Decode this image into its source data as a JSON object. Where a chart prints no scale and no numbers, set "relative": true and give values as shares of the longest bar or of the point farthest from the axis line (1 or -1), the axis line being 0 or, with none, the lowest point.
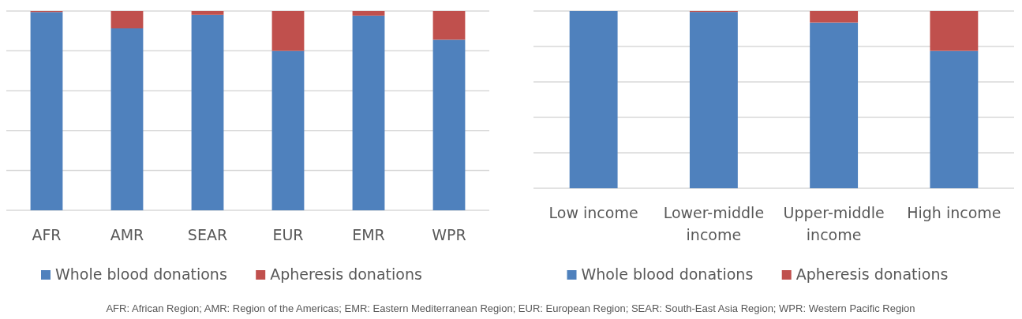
{
  "chart_data": [
    {
      "type": "bar",
      "stacked": true,
      "relative": true,
      "grid": "y",
      "legend": "bottom",
      "categories": [
        "AFR",
        "AMR",
        "SEAR",
        "EUR",
        "EMR",
        "WPR"
      ],
      "series": [
        {
          "name": "Whole blood donations",
          "color": "#4f81bd",
          "values": [
            0.995,
            0.913,
            0.981,
            0.8,
            0.977,
            0.856
          ]
        },
        {
          "name": "Apheresis donations",
          "color": "#c0504d",
          "values": [
            0.005,
            0.087,
            0.019,
            0.2,
            0.023,
            0.144
          ]
        }
      ],
      "annotations": [
        "AFR: African Region; AMR: Region of the Americas; EMR: Eastern Mediterranean Region; EUR: European Region; SEAR: South-East Asia Region; WPR: Western Pacific Region"
      ]
    },
    {
      "type": "bar",
      "stacked": true,
      "relative": true,
      "grid": "y",
      "legend": "bottom",
      "categories": [
        "Low income",
        "Lower-middle income",
        "Upper-middle income",
        "High income"
      ],
      "series": [
        {
          "name": "Whole blood donations",
          "color": "#4f81bd",
          "values": [
            1,
            0.995,
            0.935,
            0.775
          ]
        },
        {
          "name": "Apheresis donations",
          "color": "#c0504d",
          "values": [
            0,
            0.005,
            0.065,
            0.225
          ]
        }
      ]
    }
  ]
}
